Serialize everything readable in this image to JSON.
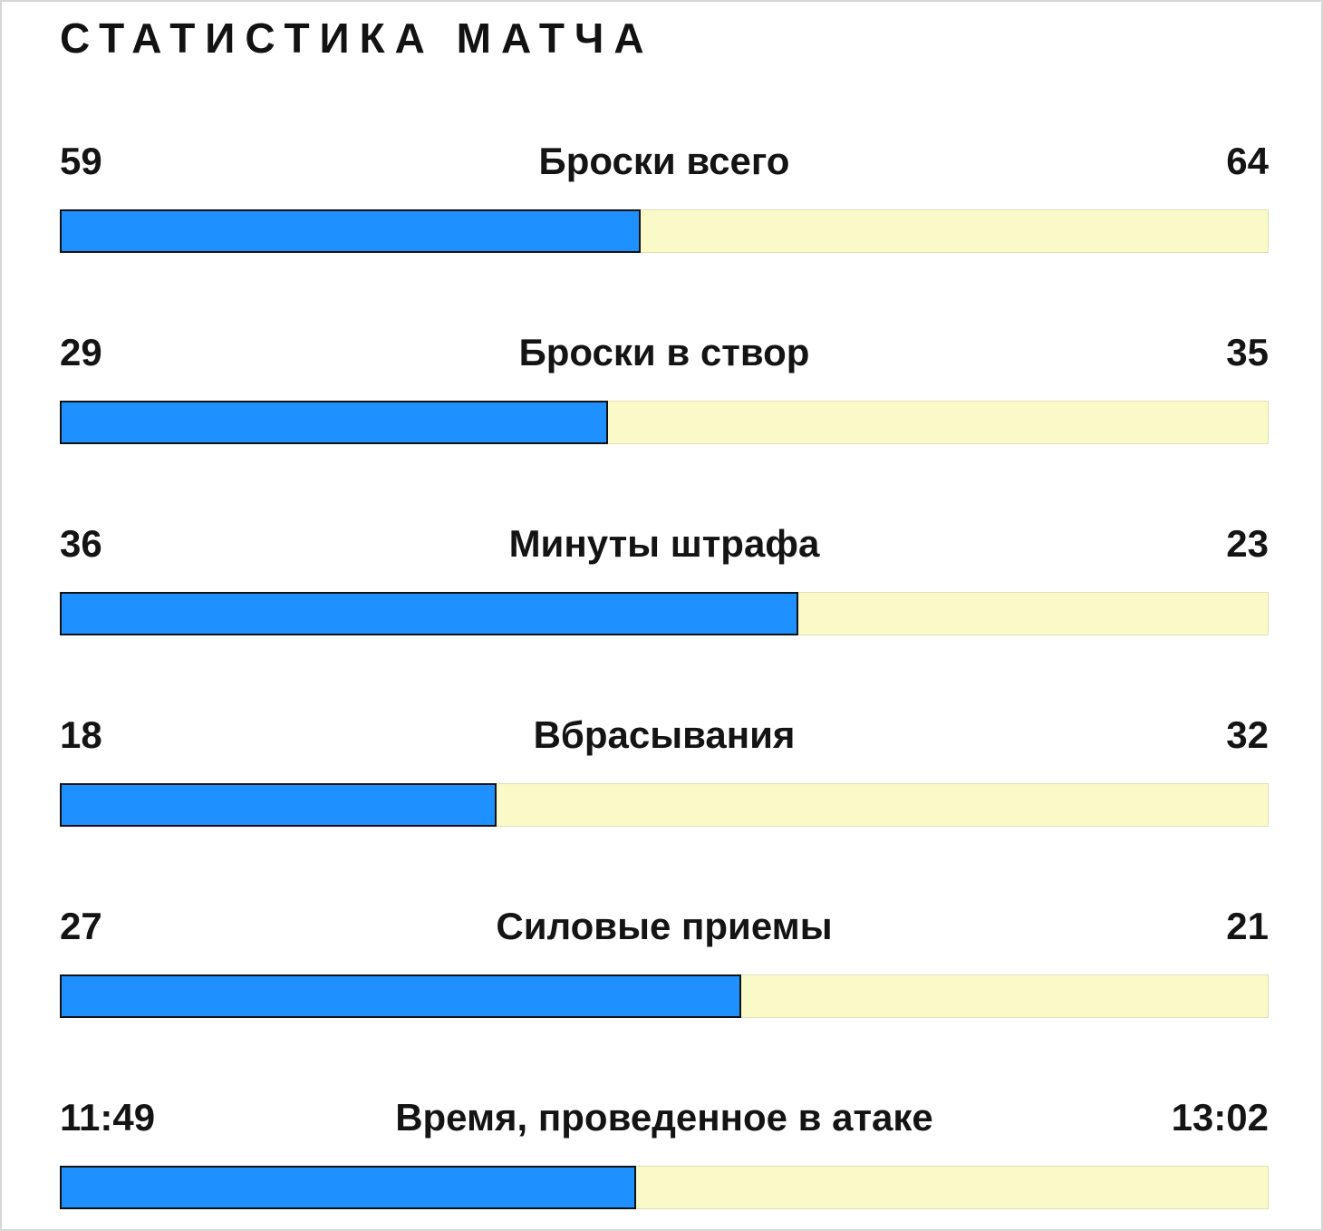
{
  "title": "СТАТИСТИКА МАТЧА",
  "colors": {
    "home": "#1E90FF",
    "away": "#FAFAC8"
  },
  "stats": [
    {
      "label": "Броски всего",
      "home": "59",
      "away": "64",
      "home_pct": 48.0
    },
    {
      "label": "Броски в створ",
      "home": "29",
      "away": "35",
      "home_pct": 45.3
    },
    {
      "label": "Минуты штрафа",
      "home": "36",
      "away": "23",
      "home_pct": 61.0
    },
    {
      "label": "Вбрасывания",
      "home": "18",
      "away": "32",
      "home_pct": 36.0
    },
    {
      "label": "Силовые приемы",
      "home": "27",
      "away": "21",
      "home_pct": 56.3
    },
    {
      "label": "Время, проведенное в атаке",
      "home": "11:49",
      "away": "13:02",
      "home_pct": 47.6
    }
  ],
  "chart_data": {
    "type": "bar",
    "orientation": "horizontal-paired",
    "title": "СТАТИСТИКА МАТЧА",
    "categories": [
      "Броски всего",
      "Броски в створ",
      "Минуты штрафа",
      "Вбрасывания",
      "Силовые приемы",
      "Время, проведенное в атаке"
    ],
    "series": [
      {
        "name": "home-team",
        "color": "#1E90FF",
        "values": [
          59,
          29,
          36,
          18,
          27,
          "11:49"
        ]
      },
      {
        "name": "away-team",
        "color": "#FAFAC8",
        "values": [
          64,
          35,
          23,
          32,
          21,
          "13:02"
        ]
      }
    ],
    "bar_share_home_pct": [
      48.0,
      45.3,
      61.0,
      36.0,
      56.3,
      47.6
    ],
    "grid": false,
    "legend_position": "none"
  }
}
